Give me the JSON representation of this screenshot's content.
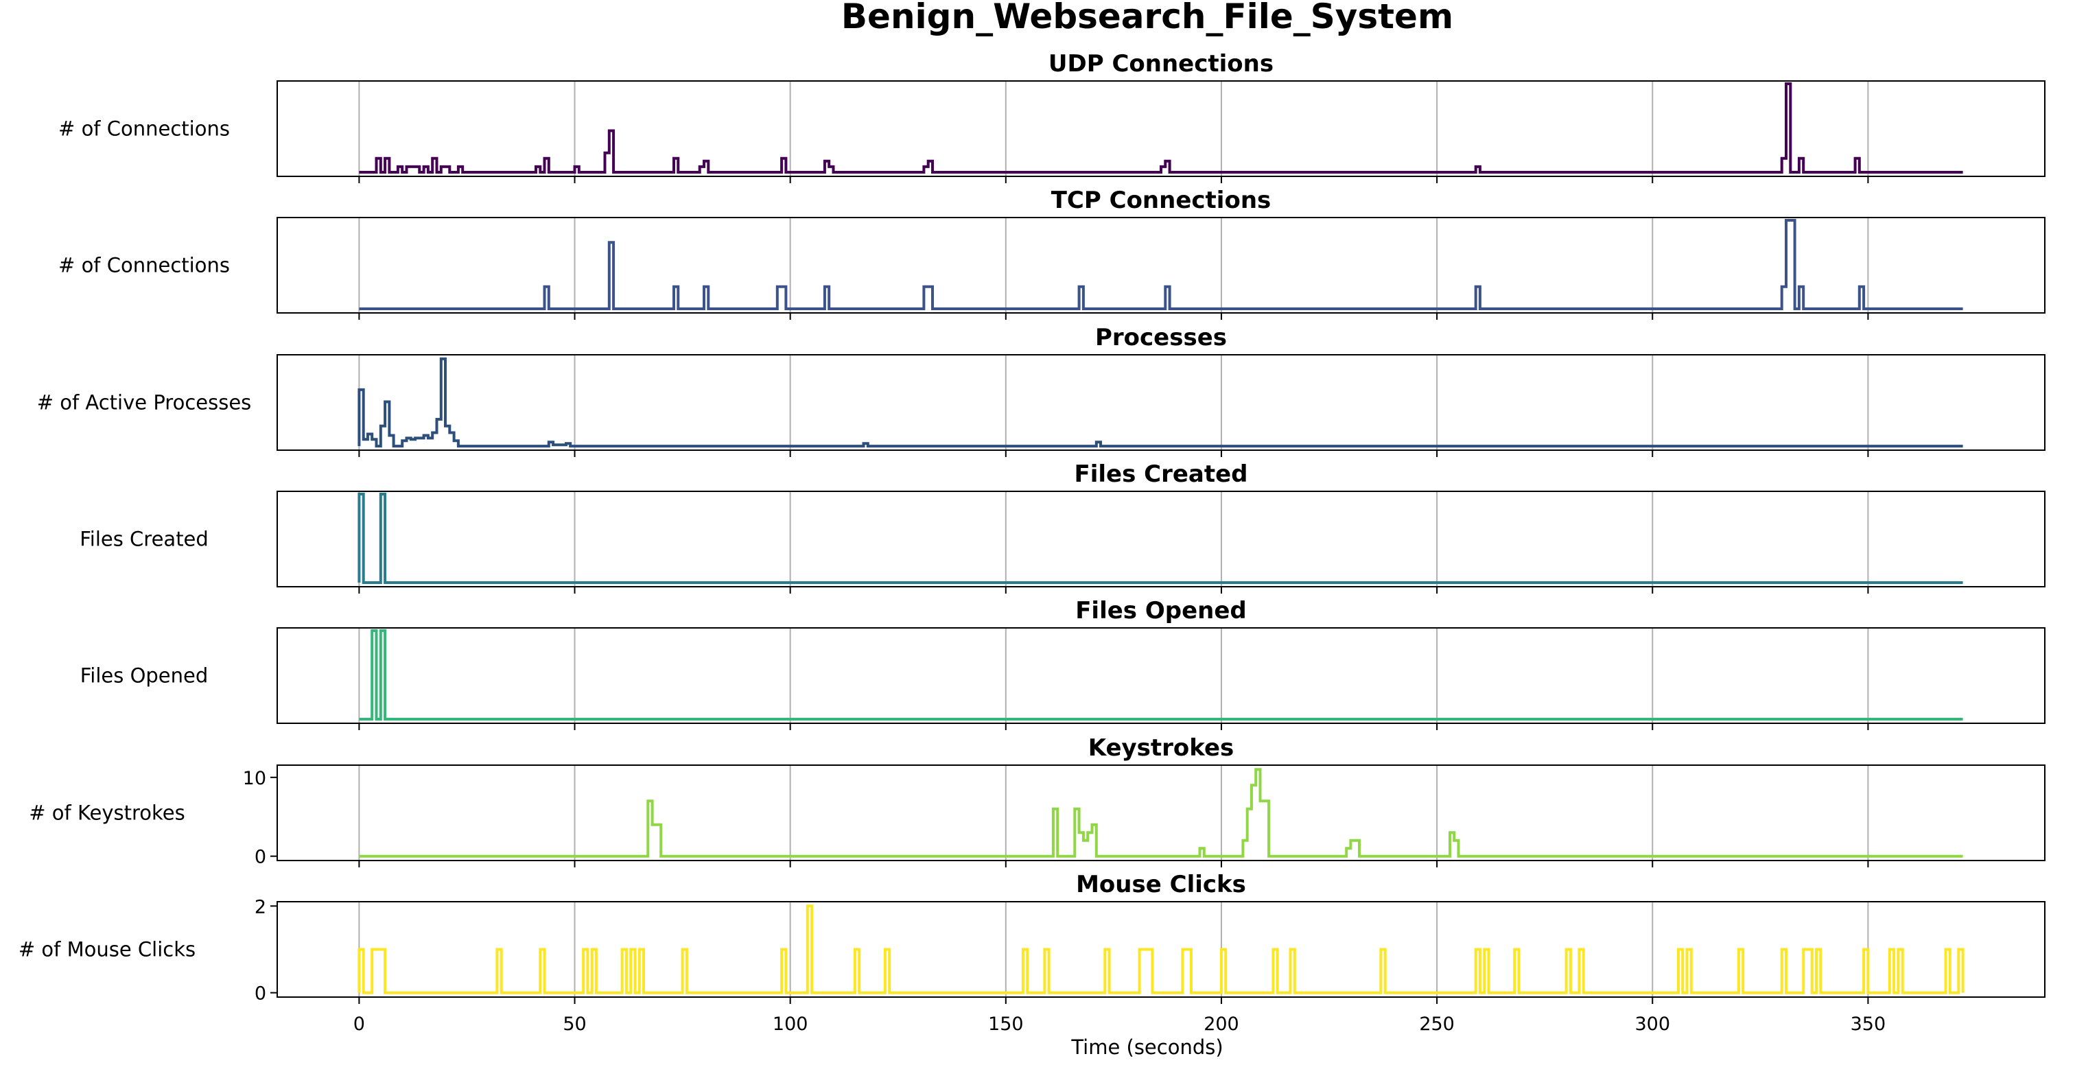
{
  "chart_data": {
    "type": "line",
    "title": "Benign_Websearch_File_System",
    "xlabel": "Time (seconds)",
    "xlim": [
      -19,
      391
    ],
    "xticks": [
      0,
      50,
      100,
      150,
      200,
      250,
      300,
      350
    ],
    "x_end": 372,
    "grid": "vertical",
    "panels": [
      {
        "name": "udp",
        "title": "UDP Connections",
        "ylabel": "# of Connections",
        "color": "#440154",
        "ylim": [
          -0.15,
          3.3
        ],
        "yticks_visible": false,
        "points": [
          [
            4,
            0.5
          ],
          [
            5,
            0
          ],
          [
            6,
            0.5
          ],
          [
            7,
            0
          ],
          [
            9,
            0.2
          ],
          [
            10,
            0
          ],
          [
            11,
            0.2
          ],
          [
            14,
            0
          ],
          [
            15,
            0.2
          ],
          [
            16,
            0
          ],
          [
            17,
            0.5
          ],
          [
            18,
            0
          ],
          [
            19,
            0.2
          ],
          [
            21,
            0
          ],
          [
            23,
            0.2
          ],
          [
            24,
            0
          ],
          [
            41,
            0.2
          ],
          [
            42,
            0
          ],
          [
            43,
            0.5
          ],
          [
            44,
            0
          ],
          [
            50,
            0.2
          ],
          [
            51,
            0
          ],
          [
            57,
            0.7
          ],
          [
            58,
            1.5
          ],
          [
            59,
            0
          ],
          [
            73,
            0.5
          ],
          [
            74,
            0
          ],
          [
            79,
            0.2
          ],
          [
            80,
            0.4
          ],
          [
            81,
            0
          ],
          [
            98,
            0.5
          ],
          [
            99,
            0
          ],
          [
            108,
            0.4
          ],
          [
            109,
            0.2
          ],
          [
            110,
            0
          ],
          [
            131,
            0.2
          ],
          [
            132,
            0.4
          ],
          [
            133,
            0
          ],
          [
            186,
            0.2
          ],
          [
            187,
            0.4
          ],
          [
            188,
            0
          ],
          [
            259,
            0.2
          ],
          [
            260,
            0
          ],
          [
            330,
            0.5
          ],
          [
            331,
            3.2
          ],
          [
            332,
            0
          ],
          [
            334,
            0.5
          ],
          [
            335,
            0
          ],
          [
            347,
            0.5
          ],
          [
            348,
            0
          ]
        ]
      },
      {
        "name": "tcp",
        "title": "TCP Connections",
        "ylabel": "# of Connections",
        "color": "#3b528b",
        "ylim": [
          -0.15,
          3.3
        ],
        "yticks_visible": false,
        "points": [
          [
            43,
            0.8
          ],
          [
            44,
            0
          ],
          [
            58,
            2.4
          ],
          [
            59,
            0
          ],
          [
            73,
            0.8
          ],
          [
            74,
            0
          ],
          [
            80,
            0.8
          ],
          [
            81,
            0
          ],
          [
            97,
            0.8
          ],
          [
            99,
            0
          ],
          [
            108,
            0.8
          ],
          [
            109,
            0
          ],
          [
            131,
            0.8
          ],
          [
            133,
            0
          ],
          [
            167,
            0.8
          ],
          [
            168,
            0
          ],
          [
            187,
            0.8
          ],
          [
            188,
            0
          ],
          [
            259,
            0.8
          ],
          [
            260,
            0
          ],
          [
            330,
            0.8
          ],
          [
            331,
            3.2
          ],
          [
            333,
            0
          ],
          [
            334,
            0.8
          ],
          [
            335,
            0
          ],
          [
            348,
            0.8
          ],
          [
            349,
            0
          ]
        ]
      },
      {
        "name": "processes",
        "title": "Processes",
        "ylabel": "# of Active Processes",
        "color": "#2c4f7c",
        "ylim": [
          -0.3,
          6.8
        ],
        "yticks_visible": false,
        "points": [
          [
            0,
            4.2
          ],
          [
            1,
            0.5
          ],
          [
            2,
            0.9
          ],
          [
            3,
            0.5
          ],
          [
            4,
            0
          ],
          [
            5,
            1.5
          ],
          [
            6,
            3.3
          ],
          [
            7,
            0.8
          ],
          [
            8,
            0
          ],
          [
            10,
            0.4
          ],
          [
            11,
            0.6
          ],
          [
            12,
            0.5
          ],
          [
            13,
            0.6
          ],
          [
            15,
            0.8
          ],
          [
            16,
            0.6
          ],
          [
            17,
            1.0
          ],
          [
            18,
            2.0
          ],
          [
            19,
            6.5
          ],
          [
            20,
            1.5
          ],
          [
            21,
            1.0
          ],
          [
            22,
            0.4
          ],
          [
            23,
            0
          ],
          [
            44,
            0.3
          ],
          [
            45,
            0.1
          ],
          [
            48,
            0.2
          ],
          [
            49,
            0
          ],
          [
            117,
            0.2
          ],
          [
            118,
            0
          ],
          [
            171,
            0.3
          ],
          [
            172,
            0
          ]
        ]
      },
      {
        "name": "files_created",
        "title": "Files Created",
        "ylabel": "Files Created",
        "color": "#287c8e",
        "ylim": [
          -0.15,
          3.3
        ],
        "yticks_visible": false,
        "points": [
          [
            0,
            3.2
          ],
          [
            1,
            0
          ],
          [
            5,
            3.2
          ],
          [
            6,
            0
          ]
        ]
      },
      {
        "name": "files_opened",
        "title": "Files Opened",
        "ylabel": "Files Opened",
        "color": "#35b779",
        "ylim": [
          -0.15,
          3.3
        ],
        "yticks_visible": false,
        "points": [
          [
            3,
            3.2
          ],
          [
            4,
            0
          ],
          [
            5,
            3.2
          ],
          [
            6,
            0
          ]
        ]
      },
      {
        "name": "keystrokes",
        "title": "Keystrokes",
        "ylabel": "# of Keystrokes",
        "color": "#8fd744",
        "ylim": [
          -0.55,
          11.55
        ],
        "yticks": [
          0,
          10
        ],
        "points": [
          [
            67,
            7
          ],
          [
            68,
            4
          ],
          [
            70,
            0
          ],
          [
            161,
            6
          ],
          [
            162,
            0
          ],
          [
            166,
            6
          ],
          [
            167,
            3
          ],
          [
            168,
            2
          ],
          [
            169,
            3
          ],
          [
            170,
            4
          ],
          [
            171,
            0
          ],
          [
            195,
            1
          ],
          [
            196,
            0
          ],
          [
            205,
            2
          ],
          [
            206,
            6
          ],
          [
            207,
            9
          ],
          [
            208,
            11
          ],
          [
            209,
            7
          ],
          [
            211,
            0
          ],
          [
            229,
            1
          ],
          [
            230,
            2
          ],
          [
            232,
            0
          ],
          [
            253,
            3
          ],
          [
            254,
            2
          ],
          [
            255,
            0
          ]
        ]
      },
      {
        "name": "mouse",
        "title": "Mouse Clicks",
        "ylabel": "# of Mouse Clicks",
        "color": "#fde725",
        "ylim": [
          -0.1,
          2.1
        ],
        "yticks": [
          0,
          2
        ],
        "points": [
          [
            0,
            1
          ],
          [
            1,
            0
          ],
          [
            3,
            1
          ],
          [
            6,
            0
          ],
          [
            32,
            1
          ],
          [
            33,
            0
          ],
          [
            42,
            1
          ],
          [
            43,
            0
          ],
          [
            52,
            1
          ],
          [
            53,
            0
          ],
          [
            54,
            1
          ],
          [
            55,
            0
          ],
          [
            61,
            1
          ],
          [
            62,
            0
          ],
          [
            63,
            1
          ],
          [
            64,
            0
          ],
          [
            65,
            1
          ],
          [
            66,
            0
          ],
          [
            75,
            1
          ],
          [
            76,
            0
          ],
          [
            98,
            1
          ],
          [
            99,
            0
          ],
          [
            104,
            2
          ],
          [
            105,
            0
          ],
          [
            115,
            1
          ],
          [
            116,
            0
          ],
          [
            122,
            1
          ],
          [
            123,
            0
          ],
          [
            154,
            1
          ],
          [
            155,
            0
          ],
          [
            159,
            1
          ],
          [
            160,
            0
          ],
          [
            173,
            1
          ],
          [
            174,
            0
          ],
          [
            181,
            1
          ],
          [
            184,
            0
          ],
          [
            191,
            1
          ],
          [
            193,
            0
          ],
          [
            200,
            1
          ],
          [
            201,
            0
          ],
          [
            212,
            1
          ],
          [
            213,
            0
          ],
          [
            216,
            1
          ],
          [
            217,
            0
          ],
          [
            237,
            1
          ],
          [
            238,
            0
          ],
          [
            259,
            1
          ],
          [
            260,
            0
          ],
          [
            261,
            1
          ],
          [
            262,
            0
          ],
          [
            268,
            1
          ],
          [
            269,
            0
          ],
          [
            280,
            1
          ],
          [
            281,
            0
          ],
          [
            283,
            1
          ],
          [
            284,
            0
          ],
          [
            306,
            1
          ],
          [
            307,
            0
          ],
          [
            308,
            1
          ],
          [
            309,
            0
          ],
          [
            320,
            1
          ],
          [
            321,
            0
          ],
          [
            330,
            1
          ],
          [
            331,
            0
          ],
          [
            335,
            1
          ],
          [
            337,
            0
          ],
          [
            338,
            1
          ],
          [
            339,
            0
          ],
          [
            349,
            1
          ],
          [
            350,
            0
          ],
          [
            355,
            1
          ],
          [
            356,
            0
          ],
          [
            357,
            1
          ],
          [
            358,
            0
          ],
          [
            368,
            1
          ],
          [
            369,
            0
          ],
          [
            371,
            1
          ],
          [
            372,
            0
          ]
        ]
      }
    ]
  }
}
